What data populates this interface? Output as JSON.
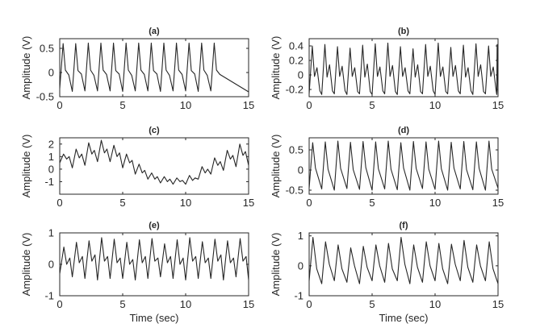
{
  "chart_data": [
    {
      "type": "line",
      "title": "(a)",
      "xlabel": "",
      "ylabel": "Amplitude (V)",
      "xlim": [
        0,
        15
      ],
      "ylim": [
        -0.5,
        0.7
      ],
      "xticks": [
        0,
        5,
        10,
        15
      ],
      "yticks": [
        -0.5,
        0,
        0.5
      ],
      "ytick_labels": [
        "-0.5",
        "0",
        "0.5"
      ],
      "grid": false,
      "series": [
        {
          "values": [
            -0.33,
            0.6,
            0.05,
            -0.05,
            -0.39,
            0.6,
            0.04,
            -0.03,
            -0.38,
            0.61,
            0.05,
            -0.06,
            -0.38,
            0.61,
            0.05,
            -0.04,
            -0.38,
            0.61,
            0.04,
            -0.03,
            -0.39,
            0.61,
            0.05,
            -0.06,
            -0.38,
            0.61,
            0.05,
            -0.04,
            -0.38,
            0.61,
            0.04,
            -0.03,
            -0.39,
            0.61,
            0.05,
            -0.06,
            -0.38,
            0.61,
            0.05,
            -0.04,
            -0.38,
            0.61,
            0.04,
            -0.03,
            -0.39,
            0.61,
            0.05,
            -0.06,
            -0.38,
            0.61,
            0.05,
            -0.04,
            -0.4
          ],
          "x": [
            0,
            0.27,
            0.45,
            0.72,
            1.0,
            1.27,
            1.45,
            1.72,
            2.0,
            2.27,
            2.45,
            2.72,
            3.0,
            3.27,
            3.45,
            3.72,
            4.0,
            4.27,
            4.45,
            4.72,
            5.0,
            5.27,
            5.45,
            5.72,
            6.0,
            6.27,
            6.45,
            6.72,
            7.0,
            7.27,
            7.45,
            7.72,
            8.0,
            8.27,
            8.45,
            8.72,
            9.0,
            9.27,
            9.45,
            9.72,
            10.0,
            10.27,
            10.45,
            10.72,
            11.0,
            11.27,
            11.45,
            11.72,
            12.0,
            12.27,
            12.45,
            12.72,
            15.0
          ]
        }
      ]
    },
    {
      "type": "line",
      "title": "(b)",
      "xlabel": "",
      "ylabel": "Amplitude (V)",
      "xlim": [
        0,
        15
      ],
      "ylim": [
        -0.3,
        0.5
      ],
      "xticks": [
        0,
        5,
        10,
        15
      ],
      "yticks": [
        -0.2,
        0,
        0.2,
        0.4
      ],
      "ytick_labels": [
        "-0.2",
        "0",
        "0.2",
        "0.4"
      ],
      "grid": false,
      "series": [
        {
          "values": [
            -0.26,
            0.4,
            -0.02,
            0.1,
            -0.22,
            -0.27,
            0.42,
            -0.03,
            0.14,
            -0.22,
            -0.26,
            0.39,
            -0.02,
            0.12,
            -0.22,
            -0.27,
            0.37,
            -0.02,
            0.1,
            -0.23,
            -0.26,
            0.41,
            -0.03,
            0.15,
            -0.23,
            -0.27,
            0.43,
            -0.02,
            0.11,
            -0.22,
            -0.26,
            0.44,
            -0.02,
            0.13,
            -0.23,
            -0.27,
            0.39,
            -0.02,
            0.1,
            -0.22,
            -0.26,
            0.36,
            -0.03,
            0.14,
            -0.23,
            -0.26,
            0.42,
            -0.02,
            0.12,
            -0.22,
            -0.27,
            0.44,
            -0.02,
            0.11,
            -0.23,
            -0.26,
            0.38,
            -0.02,
            0.13,
            -0.22,
            -0.26,
            0.41,
            -0.03,
            0.1,
            -0.22,
            -0.27,
            0.43,
            -0.02,
            0.14,
            -0.23,
            -0.26,
            0.4,
            -0.02,
            0.11,
            -0.22,
            -0.27,
            0.42,
            -0.02,
            0.12,
            -0.22,
            -0.26
          ],
          "x": [
            0.0,
            0.25,
            0.42,
            0.62,
            0.85,
            1.0,
            1.25,
            1.42,
            1.62,
            1.85,
            2.0,
            2.25,
            2.42,
            2.62,
            2.85,
            3.0,
            3.25,
            3.42,
            3.62,
            3.85,
            4.0,
            4.25,
            4.42,
            4.62,
            4.85,
            5.0,
            5.25,
            5.42,
            5.62,
            5.85,
            6.0,
            6.25,
            6.42,
            6.62,
            6.85,
            7.0,
            7.25,
            7.42,
            7.62,
            7.85,
            8.0,
            8.25,
            8.42,
            8.62,
            8.85,
            9.0,
            9.25,
            9.42,
            9.62,
            9.85,
            10.0,
            10.25,
            10.42,
            10.62,
            10.85,
            11.0,
            11.25,
            11.42,
            11.62,
            11.85,
            12.0,
            12.25,
            12.42,
            12.62,
            12.85,
            13.0,
            13.25,
            13.42,
            13.62,
            13.85,
            14.0,
            14.25,
            14.42,
            14.62,
            14.85,
            14.9,
            14.93,
            14.95,
            14.97,
            14.99,
            15.0
          ]
        }
      ]
    },
    {
      "type": "line",
      "title": "(c)",
      "xlabel": "",
      "ylabel": "Amplitude (V)",
      "xlim": [
        0,
        15
      ],
      "ylim": [
        -2,
        2.5
      ],
      "xticks": [
        0,
        5,
        10,
        15
      ],
      "yticks": [
        -1,
        0,
        1,
        2
      ],
      "ytick_labels": [
        "-1",
        "0",
        "1",
        "2"
      ],
      "grid": false,
      "series": [
        {
          "x": [
            0,
            0.3,
            0.55,
            0.75,
            1.0,
            1.3,
            1.55,
            1.75,
            2.0,
            2.3,
            2.55,
            2.75,
            3.0,
            3.3,
            3.55,
            3.75,
            4.0,
            4.3,
            4.55,
            4.75,
            5.0,
            5.3,
            5.55,
            5.75,
            6.0,
            6.3,
            6.55,
            6.75,
            7.0,
            7.3,
            7.55,
            7.75,
            8.0,
            8.3,
            8.55,
            8.75,
            9.0,
            9.3,
            9.55,
            9.75,
            10.0,
            10.3,
            10.55,
            10.75,
            11.0,
            11.3,
            11.55,
            11.75,
            12.0,
            12.3,
            12.55,
            12.75,
            13.0,
            13.3,
            13.55,
            13.75,
            14.0,
            14.3,
            14.55,
            14.75,
            15.0
          ],
          "values": [
            0.5,
            1.2,
            0.8,
            1.0,
            0.1,
            1.6,
            0.9,
            1.2,
            0.3,
            2.1,
            1.2,
            1.5,
            0.6,
            2.3,
            1.3,
            1.6,
            0.6,
            1.9,
            1.0,
            1.3,
            0.1,
            1.2,
            0.5,
            0.7,
            -0.4,
            0.4,
            -0.3,
            -0.1,
            -0.8,
            -0.3,
            -0.8,
            -0.6,
            -1.1,
            -0.6,
            -1.0,
            -0.8,
            -1.2,
            -0.7,
            -1.0,
            -0.9,
            -1.2,
            -0.5,
            -0.9,
            -0.7,
            -0.8,
            0.2,
            -0.3,
            0.0,
            -0.4,
            0.9,
            0.3,
            0.6,
            -0.1,
            1.5,
            0.8,
            1.1,
            0.2,
            2.0,
            1.1,
            1.4,
            0.3
          ]
        }
      ]
    },
    {
      "type": "line",
      "title": "(d)",
      "xlabel": "",
      "ylabel": "Amplitude (V)",
      "xlim": [
        0,
        15
      ],
      "ylim": [
        -0.6,
        0.8
      ],
      "xticks": [
        0,
        5,
        10,
        15
      ],
      "yticks": [
        -0.5,
        0,
        0.5
      ],
      "ytick_labels": [
        "-0.5",
        "0",
        "0.5"
      ],
      "grid": false,
      "series": [
        {
          "x": [
            0.0,
            0.28,
            0.5,
            1.0,
            1.28,
            1.5,
            2.0,
            2.28,
            2.5,
            3.0,
            3.28,
            3.5,
            4.0,
            4.28,
            4.5,
            5.0,
            5.28,
            5.5,
            6.0,
            6.28,
            6.5,
            7.0,
            7.28,
            7.5,
            8.0,
            8.28,
            8.5,
            9.0,
            9.28,
            9.5,
            10.0,
            10.28,
            10.5,
            11.0,
            11.28,
            11.5,
            12.0,
            12.28,
            12.5,
            13.0,
            13.28,
            13.5,
            14.0,
            14.28,
            14.5,
            15.0
          ],
          "values": [
            -0.45,
            0.68,
            0.05,
            -0.47,
            0.7,
            0.02,
            -0.5,
            0.72,
            0.04,
            -0.46,
            0.69,
            0.01,
            -0.48,
            0.71,
            0.06,
            -0.5,
            0.7,
            0.03,
            -0.47,
            0.72,
            0.02,
            -0.49,
            0.68,
            0.05,
            -0.5,
            0.71,
            0.04,
            -0.46,
            0.7,
            0.02,
            -0.48,
            0.72,
            0.03,
            -0.5,
            0.69,
            0.05,
            -0.47,
            0.71,
            0.01,
            -0.49,
            0.7,
            0.04,
            -0.5,
            0.72,
            0.02,
            -0.45
          ]
        }
      ]
    },
    {
      "type": "line",
      "title": "(e)",
      "xlabel": "Time (sec)",
      "ylabel": "Amplitude (V)",
      "xlim": [
        0,
        15
      ],
      "ylim": [
        -1,
        1
      ],
      "xticks": [
        0,
        5,
        10,
        15
      ],
      "yticks": [
        -1,
        0,
        1
      ],
      "ytick_labels": [
        "-1",
        "0",
        "1"
      ],
      "grid": false,
      "series": [
        {
          "x": [
            0,
            0.33,
            0.55,
            0.8,
            1.0,
            1.33,
            1.55,
            1.8,
            2.0,
            2.33,
            2.55,
            2.8,
            3.0,
            3.33,
            3.55,
            3.8,
            4.0,
            4.33,
            4.55,
            4.8,
            5.0,
            5.33,
            5.55,
            5.8,
            6.0,
            6.33,
            6.55,
            6.8,
            7.0,
            7.33,
            7.55,
            7.8,
            8.0,
            8.33,
            8.55,
            8.8,
            9.0,
            9.33,
            9.55,
            9.8,
            10.0,
            10.33,
            10.55,
            10.8,
            11.0,
            11.33,
            11.55,
            11.8,
            12.0,
            12.33,
            12.55,
            12.8,
            13.0,
            13.33,
            13.55,
            13.8,
            14.0,
            14.33,
            14.55,
            14.8,
            15.0
          ],
          "values": [
            -0.3,
            0.55,
            0.0,
            0.2,
            -0.4,
            0.7,
            0.05,
            0.25,
            -0.45,
            0.75,
            0.1,
            0.3,
            -0.5,
            0.85,
            0.1,
            0.25,
            -0.45,
            0.8,
            0.05,
            0.2,
            -0.45,
            0.7,
            0.0,
            0.15,
            -0.5,
            0.78,
            0.05,
            0.25,
            -0.45,
            0.82,
            0.1,
            0.2,
            -0.4,
            0.65,
            0.05,
            0.25,
            -0.45,
            0.78,
            0.0,
            0.2,
            -0.5,
            0.85,
            0.1,
            0.25,
            -0.45,
            0.72,
            0.05,
            0.2,
            -0.45,
            0.8,
            0.1,
            0.3,
            -0.5,
            0.75,
            0.05,
            0.2,
            -0.4,
            0.82,
            0.1,
            0.25,
            -0.5
          ]
        }
      ]
    },
    {
      "type": "line",
      "title": "(f)",
      "xlabel": "Time (sec)",
      "ylabel": "Amplitude (V)",
      "xlim": [
        0,
        15
      ],
      "ylim": [
        -1,
        1.1
      ],
      "xticks": [
        0,
        5,
        10,
        15
      ],
      "yticks": [
        -1,
        0,
        1
      ],
      "ytick_labels": [
        "-1",
        "0",
        "1"
      ],
      "grid": false,
      "series": [
        {
          "x": [
            0.0,
            0.3,
            0.6,
            1.0,
            1.3,
            1.6,
            2.0,
            2.3,
            2.6,
            3.0,
            3.3,
            3.6,
            4.0,
            4.3,
            4.6,
            5.0,
            5.3,
            5.6,
            6.0,
            6.3,
            6.6,
            7.0,
            7.3,
            7.6,
            8.0,
            8.3,
            8.6,
            9.0,
            9.3,
            9.6,
            10.0,
            10.3,
            10.6,
            11.0,
            11.3,
            11.6,
            12.0,
            12.3,
            12.6,
            13.0,
            13.3,
            13.6,
            14.0,
            14.3,
            14.6,
            15.0
          ],
          "values": [
            -0.5,
            0.95,
            -0.1,
            -0.6,
            0.8,
            0.05,
            -0.5,
            0.7,
            -0.1,
            -0.55,
            0.6,
            0.0,
            -0.6,
            0.65,
            -0.05,
            -0.5,
            0.7,
            0.0,
            -0.55,
            0.75,
            -0.1,
            -0.5,
            0.95,
            0.05,
            -0.6,
            0.7,
            -0.05,
            -0.55,
            0.8,
            0.0,
            -0.5,
            0.75,
            -0.1,
            -0.6,
            0.72,
            0.05,
            -0.5,
            0.85,
            -0.05,
            -0.55,
            0.7,
            0.0,
            -0.5,
            0.8,
            -0.1,
            -0.6
          ]
        }
      ]
    }
  ]
}
